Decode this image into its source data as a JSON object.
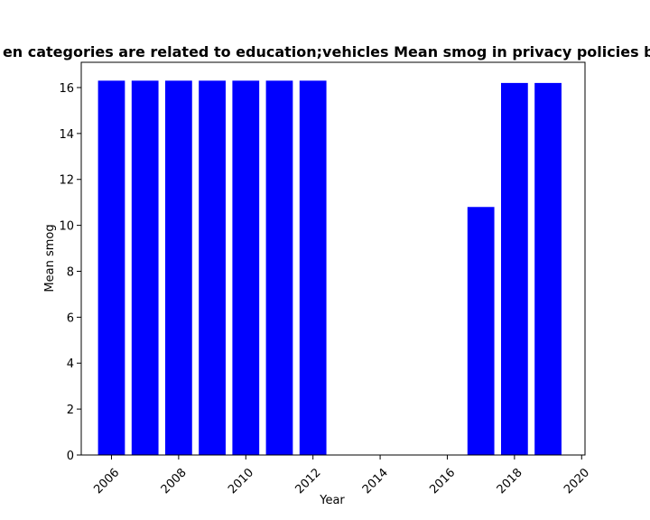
{
  "chart_data": {
    "type": "bar",
    "title": "en categories are related to education;vehicles Mean smog in privacy policies by",
    "xlabel": "Year",
    "ylabel": "Mean smog",
    "x": [
      2006,
      2007,
      2008,
      2009,
      2010,
      2011,
      2012,
      2017,
      2018,
      2019
    ],
    "values": [
      16.3,
      16.3,
      16.3,
      16.3,
      16.3,
      16.3,
      16.3,
      10.8,
      16.2,
      16.2
    ],
    "xlim": [
      2005.1,
      2020.1
    ],
    "ylim": [
      0,
      17.1
    ],
    "xticks": [
      "2006",
      "2008",
      "2010",
      "2012",
      "2014",
      "2016",
      "2018",
      "2020"
    ],
    "yticks": [
      "0",
      "2",
      "4",
      "6",
      "8",
      "10",
      "12",
      "14",
      "16"
    ],
    "bar_color": "#0000ff",
    "grid": false,
    "legend": "none"
  }
}
